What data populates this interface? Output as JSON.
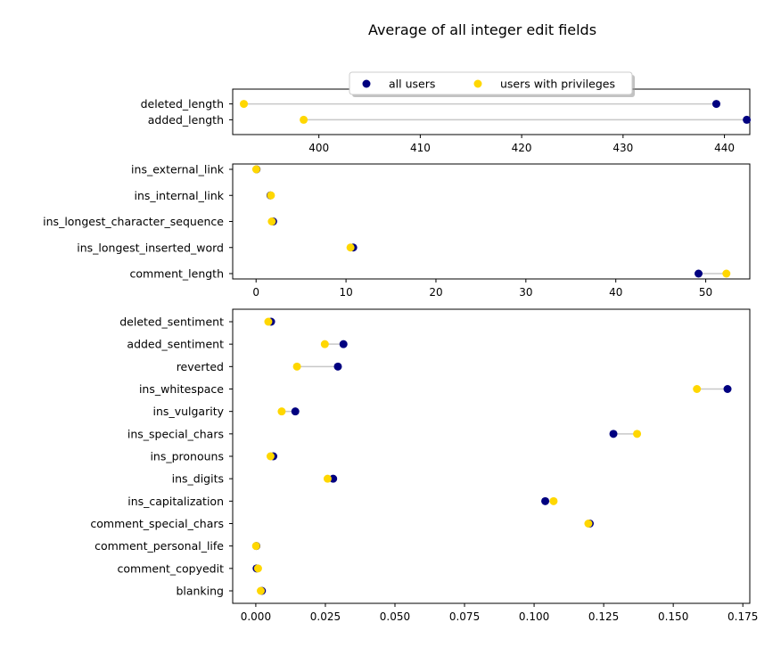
{
  "chart_data": {
    "title": "Average of all integer edit fields",
    "type": "dumbbell",
    "legend": {
      "placement": "top-center",
      "series": [
        {
          "name": "all users",
          "color": "#000080"
        },
        {
          "name": "users with privileges",
          "color": "#FFD700"
        }
      ]
    },
    "connector_color": "#c8c8c8",
    "panels": [
      {
        "xlim": [
          391.5,
          442.5
        ],
        "xticks": [
          400,
          410,
          420,
          430,
          440
        ],
        "xtick_labels": [
          "400",
          "410",
          "420",
          "430",
          "440"
        ],
        "categories": [
          "deleted_length",
          "added_length"
        ],
        "series": [
          {
            "name": "all users",
            "values": [
              439.2,
              442.2
            ]
          },
          {
            "name": "users with privileges",
            "values": [
              392.6,
              398.5
            ]
          }
        ]
      },
      {
        "xlim": [
          -2.6,
          54.9
        ],
        "xticks": [
          0,
          10,
          20,
          30,
          40,
          50
        ],
        "xtick_labels": [
          "0",
          "10",
          "20",
          "30",
          "40",
          "50"
        ],
        "categories": [
          "ins_external_link",
          "ins_internal_link",
          "ins_longest_character_sequence",
          "ins_longest_inserted_word",
          "comment_length"
        ],
        "series": [
          {
            "name": "all users",
            "values": [
              0.05,
              1.6,
              1.9,
              10.8,
              49.2
            ]
          },
          {
            "name": "users with privileges",
            "values": [
              0.02,
              1.65,
              1.75,
              10.5,
              52.3
            ]
          }
        ]
      },
      {
        "xlim": [
          -0.0083,
          0.1775
        ],
        "xticks": [
          0,
          0.025,
          0.05,
          0.075,
          0.1,
          0.125,
          0.15,
          0.175
        ],
        "xtick_labels": [
          "0.000",
          "0.025",
          "0.050",
          "0.075",
          "0.100",
          "0.125",
          "0.150",
          "0.175"
        ],
        "categories": [
          "deleted_sentiment",
          "added_sentiment",
          "reverted",
          "ins_whitespace",
          "ins_vulgarity",
          "ins_special_chars",
          "ins_pronouns",
          "ins_digits",
          "ins_capitalization",
          "comment_special_chars",
          "comment_personal_life",
          "comment_copyedit",
          "blanking"
        ],
        "series": [
          {
            "name": "all users",
            "values": [
              0.0055,
              0.0315,
              0.0295,
              0.1695,
              0.0142,
              0.1285,
              0.0063,
              0.0278,
              0.104,
              0.12,
              0.0002,
              0.0003,
              0.0022
            ]
          },
          {
            "name": "users with privileges",
            "values": [
              0.0045,
              0.0248,
              0.0148,
              0.1585,
              0.0093,
              0.137,
              0.0053,
              0.0258,
              0.107,
              0.1195,
              0.0001,
              0.0008,
              0.0018
            ]
          }
        ]
      }
    ]
  }
}
